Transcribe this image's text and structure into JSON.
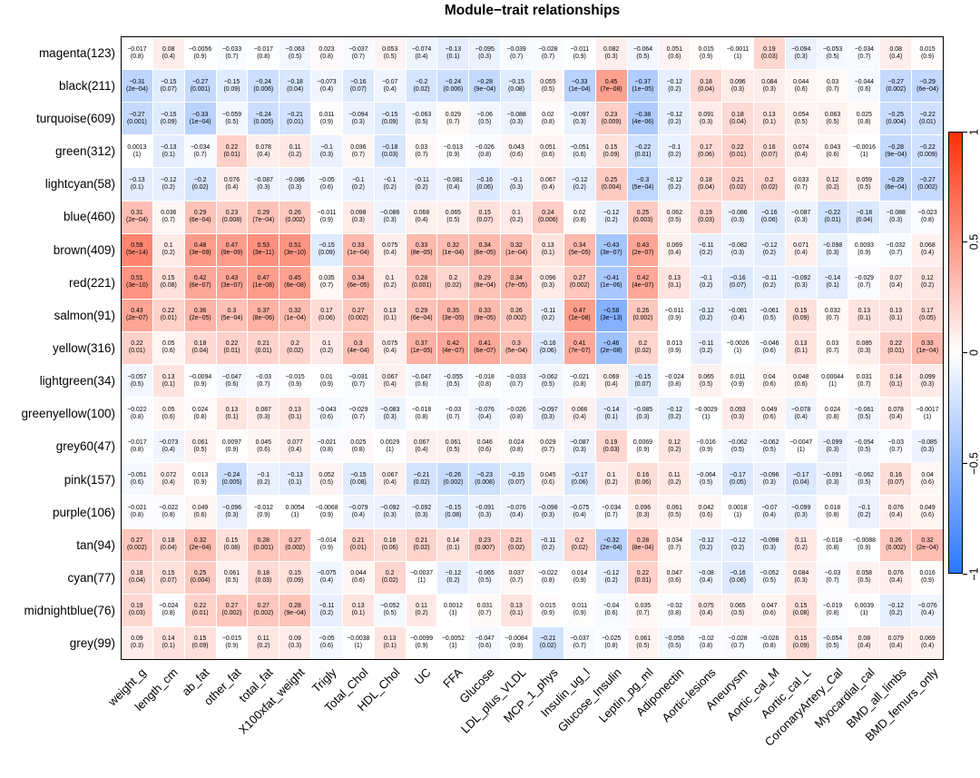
{
  "chart_data": {
    "type": "heatmap",
    "title": "Module−trait relationships",
    "rows": [
      "magenta(123)",
      "black(211)",
      "turquoise(609)",
      "green(312)",
      "lightcyan(58)",
      "blue(460)",
      "brown(409)",
      "red(221)",
      "salmon(91)",
      "yellow(316)",
      "lightgreen(34)",
      "greenyellow(100)",
      "grey60(47)",
      "pink(157)",
      "purple(106)",
      "tan(94)",
      "cyan(77)",
      "midnightblue(76)",
      "grey(99)"
    ],
    "columns": [
      "weight_g",
      "length_cm",
      "ab_fat",
      "other_fat",
      "total_fat",
      "X100xfat_weight",
      "Trigly",
      "Total_Chol",
      "HDL_Chol",
      "UC",
      "FFA",
      "Glucose",
      "LDL_plus_VLDL",
      "MCP_1_phys",
      "Insulin_ug_l",
      "Glucose_Insulin",
      "Leptin_pg_ml",
      "Adiponectin",
      "Aortic.lesions",
      "Aneurysm",
      "Aortic_cal_M",
      "Aortic_cal_L",
      "CoronaryArtery_Cal",
      "Myocardial_cal",
      "BMD_all_limbs",
      "BMD_femurs_only"
    ],
    "cor": [
      [
        "-0.017",
        "0.08",
        "-0.0056",
        "-0.033",
        "-0.017",
        "-0.063",
        "0.023",
        "-0.037",
        "0.053",
        "-0.074",
        "-0.13",
        "-0.095",
        "-0.039",
        "-0.028",
        "-0.011",
        "0.082",
        "-0.064",
        "0.051",
        "0.015",
        "-0.0011",
        "0.19",
        "-0.094",
        "-0.053",
        "-0.034",
        "0.08",
        "0.015"
      ],
      [
        "-0.31",
        "-0.15",
        "-0.27",
        "-0.15",
        "-0.24",
        "-0.18",
        "-0.073",
        "-0.16",
        "-0.07",
        "-0.2",
        "-0.24",
        "-0.28",
        "-0.15",
        "0.055",
        "-0.33",
        "0.45",
        "-0.37",
        "-0.12",
        "0.18",
        "0.096",
        "0.084",
        "0.044",
        "0.03",
        "-0.044",
        "-0.27",
        "-0.29"
      ],
      [
        "-0.27",
        "-0.15",
        "-0.33",
        "-0.059",
        "-0.24",
        "-0.21",
        "0.011",
        "-0.094",
        "-0.15",
        "-0.063",
        "0.029",
        "-0.06",
        "-0.088",
        "0.02",
        "-0.097",
        "0.23",
        "-0.38",
        "-0.12",
        "0.091",
        "0.18",
        "0.13",
        "0.054",
        "0.063",
        "0.025",
        "-0.25",
        "-0.22"
      ],
      [
        "0.0013",
        "-0.13",
        "-0.034",
        "0.22",
        "0.078",
        "0.11",
        "-0.1",
        "0.036",
        "-0.18",
        "0.03",
        "-0.013",
        "-0.026",
        "0.043",
        "0.051",
        "-0.051",
        "0.15",
        "-0.22",
        "-0.1",
        "0.17",
        "0.22",
        "0.16",
        "0.074",
        "0.043",
        "-0.0016",
        "-0.28",
        "-0.22"
      ],
      [
        "-0.13",
        "-0.12",
        "-0.2",
        "0.076",
        "-0.087",
        "-0.086",
        "-0.05",
        "-0.1",
        "-0.1",
        "-0.11",
        "-0.081",
        "-0.16",
        "-0.1",
        "0.067",
        "-0.12",
        "0.25",
        "-0.3",
        "-0.12",
        "0.18",
        "0.21",
        "0.2",
        "0.033",
        "0.12",
        "0.059",
        "-0.29",
        "-0.27"
      ],
      [
        "0.31",
        "0.036",
        "0.29",
        "0.23",
        "0.29",
        "0.26",
        "-0.011",
        "0.098",
        "-0.086",
        "0.068",
        "0.065",
        "0.15",
        "0.1",
        "0.24",
        "0.02",
        "-0.12",
        "0.25",
        "0.062",
        "0.19",
        "-0.086",
        "-0.16",
        "-0.087",
        "-0.22",
        "-0.18",
        "-0.088",
        "-0.023"
      ],
      [
        "0.59",
        "0.1",
        "0.48",
        "0.47",
        "0.53",
        "0.51",
        "-0.15",
        "0.33",
        "0.075",
        "0.33",
        "0.32",
        "0.34",
        "0.32",
        "0.13",
        "0.34",
        "-0.43",
        "0.43",
        "0.069",
        "-0.11",
        "-0.082",
        "-0.12",
        "0.071",
        "-0.098",
        "0.0093",
        "-0.032",
        "0.068"
      ],
      [
        "0.51",
        "0.15",
        "0.42",
        "0.43",
        "0.47",
        "0.45",
        "0.035",
        "0.34",
        "0.1",
        "0.28",
        "0.2",
        "0.29",
        "0.34",
        "0.096",
        "0.27",
        "-0.41",
        "0.42",
        "0.13",
        "-0.1",
        "-0.16",
        "-0.11",
        "-0.092",
        "-0.14",
        "-0.029",
        "0.07",
        "0.12"
      ],
      [
        "0.43",
        "0.22",
        "0.36",
        "0.3",
        "0.37",
        "0.32",
        "0.17",
        "0.27",
        "0.13",
        "0.29",
        "0.35",
        "0.33",
        "0.26",
        "-0.11",
        "0.47",
        "-0.58",
        "0.26",
        "-0.011",
        "-0.12",
        "-0.081",
        "-0.061",
        "0.15",
        "0.032",
        "0.13",
        "0.13",
        "0.17"
      ],
      [
        "0.22",
        "0.05",
        "0.18",
        "0.22",
        "0.21",
        "0.2",
        "0.1",
        "0.3",
        "0.075",
        "0.37",
        "0.42",
        "0.41",
        "0.3",
        "-0.16",
        "0.41",
        "-0.46",
        "0.2",
        "0.013",
        "-0.11",
        "-0.0026",
        "-0.046",
        "0.13",
        "0.03",
        "0.085",
        "0.22",
        "0.33"
      ],
      [
        "-0.057",
        "0.13",
        "-0.0094",
        "-0.047",
        "-0.03",
        "-0.015",
        "0.01",
        "-0.031",
        "0.067",
        "-0.047",
        "-0.055",
        "-0.018",
        "-0.033",
        "-0.062",
        "-0.021",
        "0.069",
        "-0.15",
        "-0.024",
        "0.065",
        "0.011",
        "0.04",
        "0.048",
        "0.00044",
        "0.031",
        "0.14",
        "0.099"
      ],
      [
        "-0.022",
        "0.05",
        "0.024",
        "0.13",
        "0.087",
        "0.13",
        "-0.043",
        "-0.029",
        "-0.083",
        "-0.018",
        "-0.03",
        "-0.076",
        "-0.026",
        "-0.097",
        "0.066",
        "-0.14",
        "-0.085",
        "-0.12",
        "-0.0029",
        "0.093",
        "0.049",
        "-0.078",
        "0.024",
        "-0.061",
        "0.078",
        "-0.0017"
      ],
      [
        "-0.017",
        "-0.073",
        "0.061",
        "0.0097",
        "0.045",
        "0.077",
        "-0.021",
        "0.025",
        "0.0029",
        "0.067",
        "0.061",
        "0.046",
        "0.024",
        "0.029",
        "-0.087",
        "0.19",
        "0.0069",
        "0.12",
        "-0.016",
        "-0.062",
        "-0.062",
        "-0.0047",
        "-0.099",
        "-0.054",
        "-0.03",
        "-0.085"
      ],
      [
        "-0.051",
        "0.072",
        "0.013",
        "-0.24",
        "-0.1",
        "-0.13",
        "0.052",
        "-0.15",
        "0.067",
        "-0.21",
        "-0.26",
        "-0.23",
        "-0.15",
        "0.045",
        "-0.17",
        "0.1",
        "0.16",
        "0.11",
        "-0.064",
        "-0.17",
        "-0.096",
        "-0.17",
        "-0.091",
        "-0.062",
        "0.16",
        "0.04"
      ],
      [
        "-0.021",
        "-0.022",
        "0.049",
        "-0.096",
        "-0.012",
        "0.0054",
        "-0.0068",
        "-0.079",
        "-0.092",
        "-0.092",
        "-0.15",
        "-0.091",
        "-0.076",
        "-0.098",
        "-0.075",
        "-0.034",
        "0.096",
        "0.061",
        "0.042",
        "0.0018",
        "-0.07",
        "-0.099",
        "0.018",
        "-0.1",
        "0.076",
        "0.049"
      ],
      [
        "0.27",
        "0.18",
        "0.32",
        "0.15",
        "0.28",
        "0.27",
        "-0.014",
        "0.21",
        "0.16",
        "0.21",
        "0.14",
        "0.23",
        "0.21",
        "-0.11",
        "0.2",
        "-0.32",
        "0.28",
        "0.034",
        "-0.12",
        "-0.12",
        "-0.098",
        "0.11",
        "-0.018",
        "-0.0088",
        "0.26",
        "0.32"
      ],
      [
        "0.18",
        "0.15",
        "0.25",
        "0.061",
        "0.18",
        "0.15",
        "-0.075",
        "0.044",
        "0.2",
        "-0.0037",
        "-0.12",
        "-0.065",
        "0.037",
        "-0.022",
        "0.014",
        "-0.12",
        "0.22",
        "0.047",
        "-0.08",
        "-0.16",
        "-0.052",
        "0.084",
        "-0.03",
        "0.058",
        "0.076",
        "0.016"
      ],
      [
        "0.19",
        "-0.024",
        "0.22",
        "0.27",
        "0.27",
        "0.28",
        "-0.11",
        "0.13",
        "-0.052",
        "0.11",
        "0.0012",
        "0.031",
        "0.13",
        "0.015",
        "0.011",
        "-0.04",
        "0.035",
        "-0.02",
        "0.075",
        "0.065",
        "0.047",
        "0.15",
        "-0.019",
        "0.0039",
        "-0.12",
        "-0.076"
      ],
      [
        "0.09",
        "0.14",
        "0.15",
        "-0.015",
        "0.11",
        "0.09",
        "-0.05",
        "-0.0038",
        "0.13",
        "-0.0099",
        "-0.0052",
        "-0.047",
        "-0.0084",
        "-0.21",
        "-0.037",
        "-0.025",
        "0.061",
        "-0.058",
        "-0.02",
        "-0.028",
        "-0.026",
        "0.15",
        "-0.054",
        "0.08",
        "0.079",
        "0.069"
      ]
    ],
    "pval": [
      [
        "0.8",
        "0.4",
        "0.9",
        "0.7",
        "0.8",
        "0.5",
        "0.8",
        "0.7",
        "0.5",
        "0.4",
        "0.1",
        "0.3",
        "0.7",
        "0.7",
        "0.9",
        "0.3",
        "0.5",
        "0.6",
        "0.9",
        "1",
        "0.03",
        "0.3",
        "0.5",
        "0.7",
        "0.4",
        "0.9"
      ],
      [
        "2e-04",
        "0.07",
        "0.001",
        "0.09",
        "0.006",
        "0.04",
        "0.4",
        "0.07",
        "0.4",
        "0.02",
        "0.006",
        "9e-04",
        "0.08",
        "0.5",
        "1e-04",
        "7e-08",
        "1e-05",
        "0.2",
        "0.04",
        "0.3",
        "0.3",
        "0.6",
        "0.7",
        "0.6",
        "0.002",
        "6e-04"
      ],
      [
        "0.001",
        "0.09",
        "1e-04",
        "0.5",
        "0.005",
        "0.01",
        "0.9",
        "0.3",
        "0.09",
        "0.5",
        "0.7",
        "0.5",
        "0.3",
        "0.8",
        "0.3",
        "0.009",
        "4e-06",
        "0.2",
        "0.3",
        "0.04",
        "0.1",
        "0.5",
        "0.5",
        "0.8",
        "0.004",
        "0.01"
      ],
      [
        "1",
        "0.1",
        "0.7",
        "0.01",
        "0.4",
        "0.2",
        "0.3",
        "0.7",
        "0.03",
        "0.7",
        "0.9",
        "0.8",
        "0.6",
        "0.6",
        "0.6",
        "0.09",
        "0.01",
        "0.2",
        "0.06",
        "0.01",
        "0.07",
        "0.4",
        "0.6",
        "1",
        "9e-04",
        "0.009"
      ],
      [
        "0.1",
        "0.2",
        "0.02",
        "0.4",
        "0.3",
        "0.3",
        "0.6",
        "0.2",
        "0.2",
        "0.2",
        "0.4",
        "0.06",
        "0.3",
        "0.4",
        "0.2",
        "0.004",
        "5e-04",
        "0.2",
        "0.04",
        "0.02",
        "0.02",
        "0.7",
        "0.2",
        "0.5",
        "6e-04",
        "0.002"
      ],
      [
        "2e-04",
        "0.7",
        "6e-04",
        "0.008",
        "7e-04",
        "0.002",
        "0.9",
        "0.3",
        "0.3",
        "0.4",
        "0.5",
        "0.07",
        "0.2",
        "0.006",
        "0.8",
        "0.2",
        "0.003",
        "0.5",
        "0.03",
        "0.3",
        "0.06",
        "0.3",
        "0.01",
        "0.04",
        "0.3",
        "0.8"
      ],
      [
        "5e-14",
        "0.2",
        "3e-09",
        "9e-09",
        "3e-11",
        "3e-10",
        "0.09",
        "1e-04",
        "0.4",
        "8e-05",
        "1e-04",
        "6e-05",
        "1e-04",
        "0.1",
        "5e-05",
        "3e-07",
        "2e-07",
        "0.4",
        "0.2",
        "0.3",
        "0.2",
        "0.4",
        "0.3",
        "0.9",
        "0.7",
        "0.4"
      ],
      [
        "3e-10",
        "0.08",
        "6e-07",
        "3e-07",
        "1e-08",
        "6e-08",
        "0.7",
        "6e-05",
        "0.2",
        "0.001",
        "0.02",
        "8e-04",
        "7e-05",
        "0.3",
        "0.002",
        "1e-06",
        "4e-07",
        "0.1",
        "0.2",
        "0.07",
        "0.2",
        "0.3",
        "0.1",
        "0.7",
        "0.4",
        "0.2"
      ],
      [
        "2e-07",
        "0.01",
        "2e-05",
        "5e-04",
        "8e-06",
        "1e-04",
        "0.06",
        "0.002",
        "0.1",
        "6e-04",
        "3e-05",
        "9e-05",
        "0.002",
        "0.2",
        "1e-08",
        "3e-13",
        "0.002",
        "0.9",
        "0.2",
        "0.4",
        "0.5",
        "0.09",
        "0.7",
        "0.1",
        "0.1",
        "0.05"
      ],
      [
        "0.01",
        "0.6",
        "0.04",
        "0.01",
        "0.01",
        "0.02",
        "0.2",
        "4e-04",
        "0.4",
        "1e-05",
        "4e-07",
        "6e-07",
        "5e-04",
        "0.06",
        "7e-07",
        "2e-08",
        "0.02",
        "0.9",
        "0.2",
        "1",
        "0.6",
        "0.1",
        "0.7",
        "0.3",
        "0.01",
        "1e-04"
      ],
      [
        "0.5",
        "0.1",
        "0.9",
        "0.6",
        "0.7",
        "0.9",
        "0.9",
        "0.7",
        "0.4",
        "0.6",
        "0.5",
        "0.8",
        "0.7",
        "0.5",
        "0.8",
        "0.4",
        "0.07",
        "0.8",
        "0.5",
        "0.9",
        "0.6",
        "0.6",
        "1",
        "0.7",
        "0.1",
        "0.3"
      ],
      [
        "0.8",
        "0.6",
        "0.8",
        "0.1",
        "0.3",
        "0.1",
        "0.6",
        "0.7",
        "0.3",
        "0.8",
        "0.7",
        "0.4",
        "0.8",
        "0.3",
        "0.4",
        "0.1",
        "0.3",
        "0.2",
        "1",
        "0.3",
        "0.6",
        "0.4",
        "0.8",
        "0.5",
        "0.4",
        "1"
      ],
      [
        "0.8",
        "0.4",
        "0.5",
        "0.9",
        "0.6",
        "0.4",
        "0.8",
        "0.8",
        "1",
        "0.4",
        "0.5",
        "0.6",
        "0.8",
        "0.7",
        "0.3",
        "0.03",
        "0.9",
        "0.2",
        "0.9",
        "0.5",
        "0.5",
        "1",
        "0.3",
        "0.5",
        "0.7",
        "0.3"
      ],
      [
        "0.6",
        "0.4",
        "0.9",
        "0.005",
        "0.2",
        "0.1",
        "0.5",
        "0.08",
        "0.4",
        "0.02",
        "0.002",
        "0.008",
        "0.07",
        "0.6",
        "0.06",
        "0.2",
        "0.06",
        "0.2",
        "0.5",
        "0.05",
        "0.3",
        "0.04",
        "0.3",
        "0.5",
        "0.07",
        "0.6"
      ],
      [
        "0.8",
        "0.8",
        "0.6",
        "0.3",
        "0.9",
        "1",
        "0.9",
        "0.4",
        "0.3",
        "0.3",
        "0.08",
        "0.3",
        "0.4",
        "0.3",
        "0.4",
        "0.7",
        "0.3",
        "0.5",
        "0.6",
        "1",
        "0.4",
        "0.3",
        "0.8",
        "0.2",
        "0.4",
        "0.6"
      ],
      [
        "0.002",
        "0.04",
        "2e-04",
        "0.08",
        "0.001",
        "0.002",
        "0.9",
        "0.01",
        "0.06",
        "0.02",
        "0.1",
        "0.007",
        "0.02",
        "0.2",
        "0.02",
        "2e-04",
        "8e-04",
        "0.7",
        "0.2",
        "0.2",
        "0.3",
        "0.2",
        "0.8",
        "0.9",
        "0.002",
        "2e-04"
      ],
      [
        "0.04",
        "0.07",
        "0.004",
        "0.5",
        "0.03",
        "0.09",
        "0.4",
        "0.6",
        "0.02",
        "1",
        "0.2",
        "0.5",
        "0.7",
        "0.8",
        "0.9",
        "0.2",
        "0.01",
        "0.6",
        "0.4",
        "0.06",
        "0.5",
        "0.3",
        "0.7",
        "0.5",
        "0.4",
        "0.9"
      ],
      [
        "0.03",
        "0.8",
        "0.01",
        "0.002",
        "0.002",
        "9e-04",
        "0.2",
        "0.1",
        "0.5",
        "0.2",
        "1",
        "0.7",
        "0.1",
        "0.9",
        "0.9",
        "0.6",
        "0.7",
        "0.8",
        "0.4",
        "0.5",
        "0.6",
        "0.08",
        "0.8",
        "1",
        "0.2",
        "0.4"
      ],
      [
        "0.3",
        "0.1",
        "0.09",
        "0.9",
        "0.2",
        "0.3",
        "0.6",
        "1",
        "0.1",
        "0.9",
        "1",
        "0.6",
        "0.9",
        "0.02",
        "0.7",
        "0.8",
        "0.5",
        "0.5",
        "0.8",
        "0.7",
        "0.8",
        "0.09",
        "0.5",
        "0.4",
        "0.4",
        "0.4"
      ]
    ],
    "colorscale": {
      "max_color": "#FF2E0A",
      "mid_color": "#FFFFFF",
      "min_color": "#2B77FF",
      "domain": [
        -1,
        1
      ]
    },
    "colorbar_ticks": [
      "1",
      "0.5",
      "0",
      "-0.5",
      "-1"
    ],
    "legend_position": "right",
    "grid": false
  }
}
